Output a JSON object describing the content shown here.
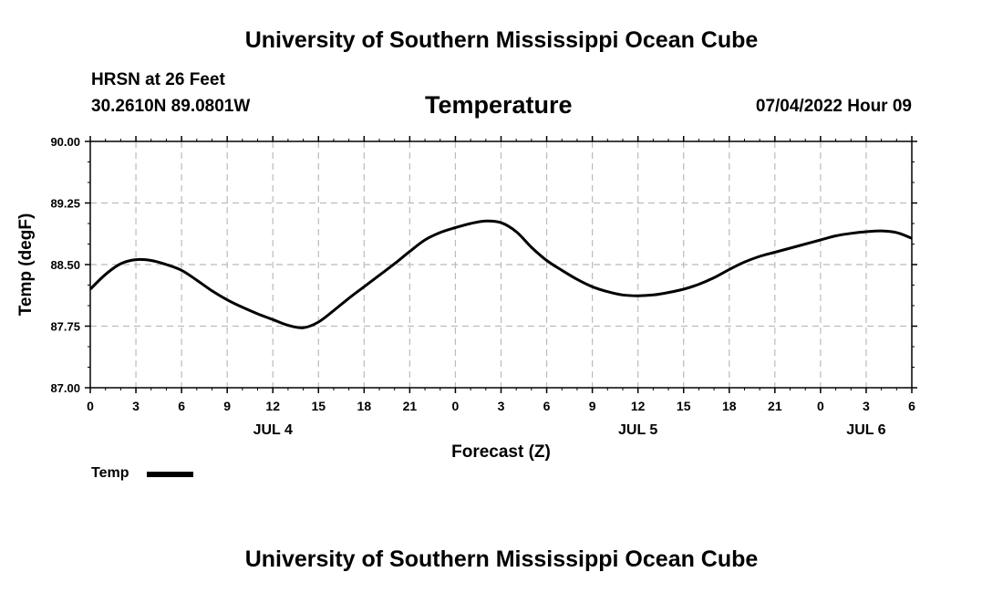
{
  "header": {
    "title": "University of Southern Mississippi Ocean Cube",
    "station": "HRSN at 26 Feet",
    "coords": "30.2610N  89.0801W",
    "variable": "Temperature",
    "datetime": "07/04/2022 Hour 09"
  },
  "footer": {
    "title": "University of Southern Mississippi Ocean Cube"
  },
  "legend": {
    "label": "Temp"
  },
  "colors": {
    "line": "#000000",
    "grid": "#bbbbbb"
  },
  "chart_data": {
    "type": "line",
    "xlabel": "Forecast (Z)",
    "ylabel": "Temp (degF)",
    "ylim": [
      87.0,
      90.0
    ],
    "yticks": [
      "87.00",
      "87.75",
      "88.50",
      "89.25",
      "90.00"
    ],
    "xlim_hours": [
      0,
      54
    ],
    "xticks": [
      "0",
      "3",
      "6",
      "9",
      "12",
      "15",
      "18",
      "21",
      "0",
      "3",
      "6",
      "9",
      "12",
      "15",
      "18",
      "21",
      "0",
      "3",
      "6"
    ],
    "day_labels": [
      {
        "label": "JUL 4",
        "hour": 12
      },
      {
        "label": "JUL 5",
        "hour": 36
      },
      {
        "label": "JUL 6",
        "hour": 51
      }
    ],
    "grid": true,
    "legend_position": "bottom-left",
    "series": [
      {
        "name": "Temp",
        "x": [
          0,
          1,
          2,
          3,
          4,
          5,
          6,
          7,
          8,
          9,
          10,
          11,
          12,
          13,
          14,
          15,
          16,
          17,
          18,
          19,
          20,
          21,
          22,
          23,
          24,
          25,
          26,
          27,
          28,
          29,
          30,
          31,
          32,
          33,
          34,
          35,
          36,
          37,
          38,
          39,
          40,
          41,
          42,
          43,
          44,
          45,
          46,
          47,
          48,
          49,
          50,
          51,
          52,
          53,
          54
        ],
        "y": [
          88.2,
          88.38,
          88.51,
          88.56,
          88.55,
          88.5,
          88.43,
          88.31,
          88.18,
          88.07,
          87.98,
          87.9,
          87.83,
          87.76,
          87.73,
          87.8,
          87.94,
          88.09,
          88.23,
          88.37,
          88.51,
          88.66,
          88.8,
          88.89,
          88.95,
          89.0,
          89.03,
          89.01,
          88.9,
          88.71,
          88.55,
          88.43,
          88.32,
          88.23,
          88.17,
          88.13,
          88.12,
          88.13,
          88.16,
          88.2,
          88.26,
          88.34,
          88.44,
          88.53,
          88.6,
          88.65,
          88.7,
          88.75,
          88.8,
          88.85,
          88.88,
          88.9,
          88.91,
          88.89,
          88.82
        ]
      }
    ]
  }
}
